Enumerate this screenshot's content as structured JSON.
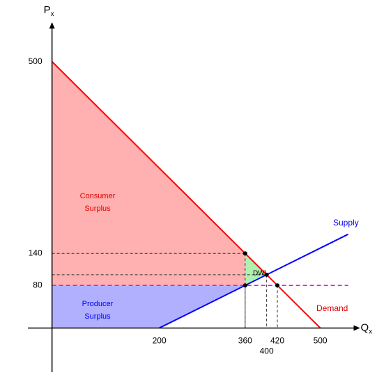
{
  "chart_data": {
    "type": "supply-demand",
    "xlabel": {
      "main": "Q",
      "sub": "x"
    },
    "ylabel": {
      "main": "P",
      "sub": "x"
    },
    "xlim": [
      -45,
      570
    ],
    "ylim": [
      -83,
      570
    ],
    "xticks": [
      200,
      360,
      400,
      420,
      500
    ],
    "yticks": [
      80,
      140,
      500
    ],
    "series": [
      {
        "name": "Demand",
        "color": "#ff0000",
        "x": [
          0,
          500
        ],
        "values": [
          500,
          0
        ]
      },
      {
        "name": "Supply",
        "color": "#0000ff",
        "x": [
          200,
          552
        ],
        "values": [
          0,
          176
        ]
      }
    ],
    "areas": [
      {
        "label": [
          "Consumer",
          "Surplus"
        ],
        "color": "#ffb0b0",
        "x": [
          0,
          360,
          360,
          0
        ],
        "values": [
          500,
          140,
          80,
          80
        ]
      },
      {
        "label": [
          "Producer",
          "Surplus"
        ],
        "color": "#b0b0ff",
        "x": [
          0,
          360,
          200,
          0
        ],
        "values": [
          80,
          80,
          0,
          0
        ]
      },
      {
        "label": [
          "DWL"
        ],
        "color": "#b0f0b0",
        "x": [
          360,
          400,
          360
        ],
        "values": [
          140,
          100,
          80
        ]
      }
    ],
    "price_line": {
      "value": 80,
      "color": "#ff00ff",
      "x": [
        0,
        552
      ]
    },
    "points": {
      "x": [
        360,
        360,
        400,
        420
      ],
      "values": [
        140,
        80,
        100,
        80
      ],
      "guide_h": [
        true,
        false,
        true,
        false
      ]
    }
  }
}
